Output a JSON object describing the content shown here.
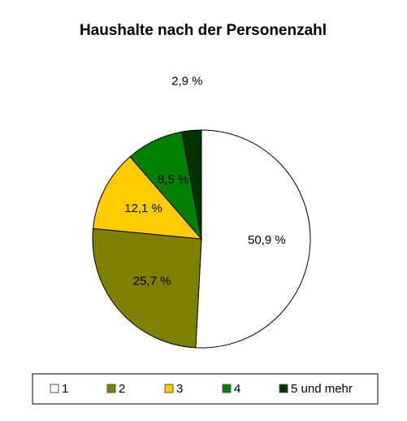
{
  "chart_data": {
    "type": "pie",
    "title": "Haushalte nach der Personenzahl",
    "categories": [
      "1",
      "2",
      "3",
      "4",
      "5 und mehr"
    ],
    "values": [
      50.9,
      25.7,
      12.1,
      8.5,
      2.9
    ],
    "value_labels": [
      "50,9 %",
      "25,7 %",
      "12,1 %",
      "8,5 %",
      "2,9 %"
    ],
    "colors": [
      "#ffffff",
      "#808000",
      "#ffcc00",
      "#008000",
      "#003300"
    ],
    "legend": "bottom"
  }
}
